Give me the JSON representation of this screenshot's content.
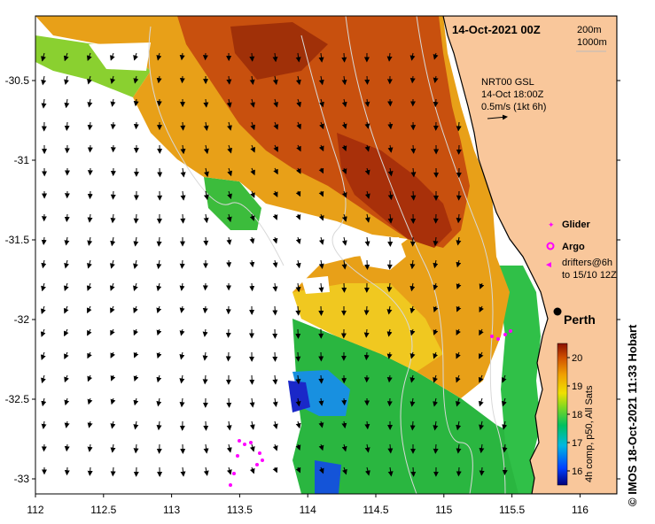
{
  "map": {
    "datetime": "14-Oct-2021 00Z",
    "contours_legend": [
      "200m",
      "1000m"
    ],
    "currents_source": "NRT00 GSL",
    "currents_time": "14-Oct 18:00Z",
    "currents_scale": "0.5m/s (1kt 6h)",
    "city": "Perth",
    "x_ticks": [
      "112",
      "112.5",
      "113",
      "113.5",
      "114",
      "114.5",
      "115",
      "115.5",
      "116"
    ],
    "y_ticks": [
      "-30.5",
      "-31",
      "-31.5",
      "-32",
      "-32.5",
      "-33"
    ],
    "legend": {
      "glider": "Glider",
      "argo": "Argo",
      "drifters_line1": "drifters@6h",
      "drifters_line2": "to 15/10 12Z"
    },
    "colorbar": {
      "ticks": [
        "20",
        "19",
        "18",
        "17",
        "16"
      ],
      "label": "4h comp, p50, All Sats",
      "range": [
        15.5,
        20.5
      ]
    },
    "side_credit": "© IMOS 18-Oct-2021 11:33 Hobart",
    "colors": {
      "land": "#f9c79b",
      "warm": "#a8350c",
      "mid": "#e08a10",
      "cool": "#22b33a",
      "marker": "#ff00ff"
    }
  }
}
